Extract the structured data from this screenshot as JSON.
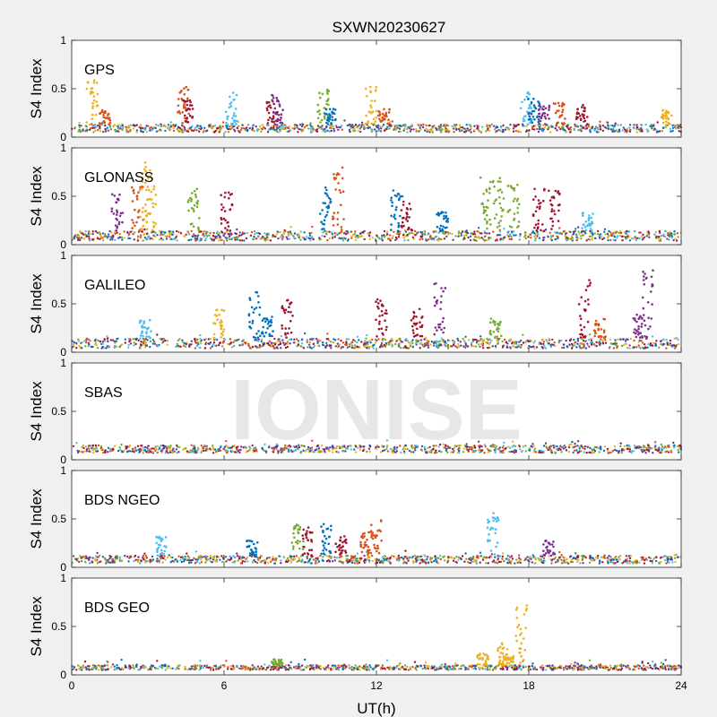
{
  "figure": {
    "title": "SXWN20230627",
    "xlabel": "UT(h)",
    "ylabel": "S4 Index",
    "watermark": "IONISE"
  },
  "colors": [
    "#0072BD",
    "#D95319",
    "#EDB120",
    "#7E2F8E",
    "#77AC30",
    "#4DBEEE",
    "#A2142F"
  ],
  "chart_data": [
    {
      "type": "scatter",
      "panel": "GPS",
      "xlim": [
        0,
        24
      ],
      "ylim": [
        0,
        1
      ],
      "xticks": [
        0,
        6,
        12,
        18,
        24
      ],
      "yticks": [
        0,
        0.5,
        1
      ],
      "xlabel": "",
      "ylabel": "S4 Index",
      "background": [
        0.05,
        0.13
      ],
      "spikes": [
        {
          "x": 0.8,
          "peak": 0.6,
          "c": 2
        },
        {
          "x": 1.3,
          "peak": 0.28,
          "c": 1
        },
        {
          "x": 4.4,
          "peak": 0.52,
          "c": 1
        },
        {
          "x": 4.6,
          "peak": 0.38,
          "c": 6
        },
        {
          "x": 6.3,
          "peak": 0.46,
          "c": 5
        },
        {
          "x": 7.9,
          "peak": 0.38,
          "c": 6
        },
        {
          "x": 8.1,
          "peak": 0.44,
          "c": 3
        },
        {
          "x": 9.9,
          "peak": 0.5,
          "c": 4
        },
        {
          "x": 10.2,
          "peak": 0.3,
          "c": 0
        },
        {
          "x": 11.8,
          "peak": 0.52,
          "c": 2
        },
        {
          "x": 12.3,
          "peak": 0.3,
          "c": 1
        },
        {
          "x": 17.9,
          "peak": 0.5,
          "c": 5
        },
        {
          "x": 18.2,
          "peak": 0.4,
          "c": 0
        },
        {
          "x": 18.6,
          "peak": 0.34,
          "c": 3
        },
        {
          "x": 19.2,
          "peak": 0.36,
          "c": 1
        },
        {
          "x": 20.1,
          "peak": 0.34,
          "c": 6
        },
        {
          "x": 23.4,
          "peak": 0.28,
          "c": 2
        }
      ]
    },
    {
      "type": "scatter",
      "panel": "GLONASS",
      "xlim": [
        0,
        24
      ],
      "ylim": [
        0,
        1
      ],
      "xticks": [
        0,
        6,
        12,
        18,
        24
      ],
      "yticks": [
        0,
        0.5,
        1
      ],
      "xlabel": "",
      "ylabel": "S4 Index",
      "background": [
        0.04,
        0.14
      ],
      "spikes": [
        {
          "x": 1.8,
          "peak": 0.55,
          "c": 3
        },
        {
          "x": 2.6,
          "peak": 0.6,
          "c": 1
        },
        {
          "x": 2.9,
          "peak": 0.85,
          "c": 2
        },
        {
          "x": 3.1,
          "peak": 0.62,
          "c": 2
        },
        {
          "x": 4.8,
          "peak": 0.58,
          "c": 4
        },
        {
          "x": 6.1,
          "peak": 0.56,
          "c": 6
        },
        {
          "x": 10.0,
          "peak": 0.6,
          "c": 0
        },
        {
          "x": 10.5,
          "peak": 0.82,
          "c": 1
        },
        {
          "x": 12.8,
          "peak": 0.58,
          "c": 0
        },
        {
          "x": 13.2,
          "peak": 0.45,
          "c": 6
        },
        {
          "x": 14.6,
          "peak": 0.34,
          "c": 0
        },
        {
          "x": 16.3,
          "peak": 0.7,
          "c": 4
        },
        {
          "x": 16.8,
          "peak": 0.7,
          "c": 4
        },
        {
          "x": 17.4,
          "peak": 0.65,
          "c": 4
        },
        {
          "x": 18.4,
          "peak": 0.62,
          "c": 6
        },
        {
          "x": 19.0,
          "peak": 0.6,
          "c": 6
        },
        {
          "x": 20.3,
          "peak": 0.35,
          "c": 5
        }
      ]
    },
    {
      "type": "scatter",
      "panel": "GALILEO",
      "xlim": [
        0,
        24
      ],
      "ylim": [
        0,
        1
      ],
      "xticks": [
        0,
        6,
        12,
        18,
        24
      ],
      "yticks": [
        0,
        0.5,
        1
      ],
      "xlabel": "",
      "ylabel": "S4 Index",
      "background": [
        0.04,
        0.14
      ],
      "spikes": [
        {
          "x": 2.9,
          "peak": 0.34,
          "c": 5
        },
        {
          "x": 5.8,
          "peak": 0.44,
          "c": 2
        },
        {
          "x": 7.2,
          "peak": 0.65,
          "c": 0
        },
        {
          "x": 7.7,
          "peak": 0.38,
          "c": 0
        },
        {
          "x": 8.5,
          "peak": 0.54,
          "c": 6
        },
        {
          "x": 12.2,
          "peak": 0.55,
          "c": 6
        },
        {
          "x": 13.6,
          "peak": 0.45,
          "c": 6
        },
        {
          "x": 14.5,
          "peak": 0.72,
          "c": 3
        },
        {
          "x": 16.7,
          "peak": 0.35,
          "c": 4
        },
        {
          "x": 20.2,
          "peak": 0.75,
          "c": 6
        },
        {
          "x": 20.8,
          "peak": 0.35,
          "c": 1
        },
        {
          "x": 22.3,
          "peak": 0.4,
          "c": 3
        },
        {
          "x": 22.7,
          "peak": 0.85,
          "c": 3
        }
      ]
    },
    {
      "type": "scatter",
      "panel": "SBAS",
      "xlim": [
        0,
        24
      ],
      "ylim": [
        0,
        1
      ],
      "xticks": [
        0,
        6,
        12,
        18,
        24
      ],
      "yticks": [
        0,
        0.5,
        1
      ],
      "xlabel": "",
      "ylabel": "S4 Index",
      "background": [
        0.07,
        0.15
      ],
      "spikes": []
    },
    {
      "type": "scatter",
      "panel": "BDS NGEO",
      "xlim": [
        0,
        24
      ],
      "ylim": [
        0,
        1
      ],
      "xticks": [
        0,
        6,
        12,
        18,
        24
      ],
      "yticks": [
        0,
        0.5,
        1
      ],
      "xlabel": "",
      "ylabel": "S4 Index",
      "background": [
        0.04,
        0.12
      ],
      "spikes": [
        {
          "x": 3.5,
          "peak": 0.32,
          "c": 5
        },
        {
          "x": 7.1,
          "peak": 0.28,
          "c": 0
        },
        {
          "x": 8.9,
          "peak": 0.45,
          "c": 4
        },
        {
          "x": 9.3,
          "peak": 0.42,
          "c": 6
        },
        {
          "x": 10.0,
          "peak": 0.45,
          "c": 0
        },
        {
          "x": 10.6,
          "peak": 0.35,
          "c": 6
        },
        {
          "x": 11.6,
          "peak": 0.38,
          "c": 1
        },
        {
          "x": 12.0,
          "peak": 0.5,
          "c": 1
        },
        {
          "x": 16.6,
          "peak": 0.58,
          "c": 5
        },
        {
          "x": 18.8,
          "peak": 0.28,
          "c": 3
        }
      ]
    },
    {
      "type": "scatter",
      "panel": "BDS GEO",
      "xlim": [
        0,
        24
      ],
      "ylim": [
        0,
        1
      ],
      "xticks": [
        0,
        6,
        12,
        18,
        24
      ],
      "yticks": [
        0,
        0.5,
        1
      ],
      "xlabel": "UT(h)",
      "ylabel": "S4 Index",
      "background": [
        0.05,
        0.1
      ],
      "spikes": [
        {
          "x": 8.1,
          "peak": 0.16,
          "c": 4
        },
        {
          "x": 16.2,
          "peak": 0.22,
          "c": 2
        },
        {
          "x": 17.0,
          "peak": 0.35,
          "c": 2
        },
        {
          "x": 17.7,
          "peak": 0.72,
          "c": 2
        },
        {
          "x": 17.2,
          "peak": 0.2,
          "c": 2
        }
      ]
    }
  ]
}
